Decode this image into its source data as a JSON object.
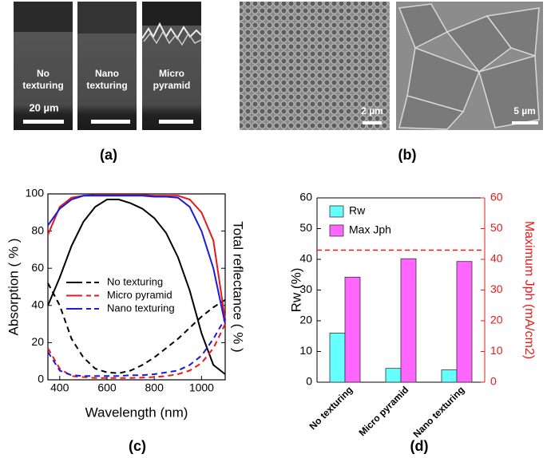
{
  "panels": {
    "a": {
      "label": "(a)",
      "images": [
        {
          "label": "No texturing",
          "scale_bar": "20 µm"
        },
        {
          "label": "Nano texturing"
        },
        {
          "label": "Micro pyramid"
        }
      ]
    },
    "b": {
      "label": "(b)",
      "scale_bars": [
        "2 µm",
        "5 µm"
      ]
    },
    "c": {
      "label": "(c)"
    },
    "d": {
      "label": "(d)"
    }
  },
  "chart_data": [
    {
      "type": "line",
      "x_label": "Wavelength (nm)",
      "y_label": "Absorption ( % )",
      "y2_label": "Total reflectance ( % )",
      "x": [
        350,
        400,
        450,
        500,
        550,
        600,
        650,
        700,
        750,
        800,
        850,
        900,
        950,
        1000,
        1050,
        1100
      ],
      "xlim": [
        350,
        1100
      ],
      "xticks": [
        400,
        600,
        800,
        1000
      ],
      "ylim": [
        0,
        100
      ],
      "yticks": [
        0,
        20,
        40,
        60,
        80,
        100
      ],
      "series": [
        {
          "name": "No texturing",
          "color": "#000000",
          "absorption": [
            40,
            55,
            72,
            85,
            93,
            97,
            97,
            95,
            92,
            87,
            79,
            66,
            48,
            25,
            8,
            3
          ],
          "reflectance": [
            52,
            40,
            22,
            12,
            6,
            4,
            3.5,
            5,
            8,
            12,
            17,
            22,
            28,
            34,
            39,
            43
          ]
        },
        {
          "name": "Micro pyramid",
          "color": "#e8191a",
          "absorption": [
            78,
            93,
            98,
            99,
            99.5,
            99.5,
            99.5,
            99.5,
            99.5,
            99,
            99,
            99,
            97,
            90,
            75,
            32
          ],
          "reflectance": [
            17,
            6,
            2,
            1.5,
            1,
            1,
            1,
            1,
            1.2,
            1.5,
            2,
            3,
            5,
            9,
            17,
            30
          ]
        },
        {
          "name": "Nano texturing",
          "color": "#1a1adb",
          "absorption": [
            83,
            92,
            97,
            99,
            99,
            99,
            99,
            99,
            99,
            98.5,
            98.5,
            98,
            93,
            80,
            60,
            30
          ],
          "reflectance": [
            15,
            5,
            2.5,
            2,
            2,
            2,
            2,
            2.5,
            2.5,
            3,
            4,
            5,
            8,
            13,
            22,
            33
          ]
        }
      ]
    },
    {
      "type": "bar",
      "y_label": "Rw (%)",
      "y2_label": "Maximum Jph (mA/cm2)",
      "categories": [
        "No texturing",
        "Micro pyramid",
        "Nano texturing"
      ],
      "ylim": [
        0,
        60
      ],
      "yticks": [
        0,
        10,
        20,
        30,
        40,
        50,
        60
      ],
      "y2lim": [
        0,
        60
      ],
      "y2ticks": [
        0,
        10,
        20,
        30,
        40,
        50,
        60
      ],
      "y2_color": "#e8191a",
      "hline": {
        "value": 43,
        "axis": "y2",
        "color": "#e8191a"
      },
      "series": [
        {
          "name": "Rw",
          "color": "#66ffff",
          "values": [
            16,
            4.5,
            4
          ]
        },
        {
          "name": "Max Jph",
          "color": "#ff66ff",
          "axis": "y2",
          "values": [
            34.2,
            40.2,
            39.3
          ]
        }
      ]
    }
  ]
}
